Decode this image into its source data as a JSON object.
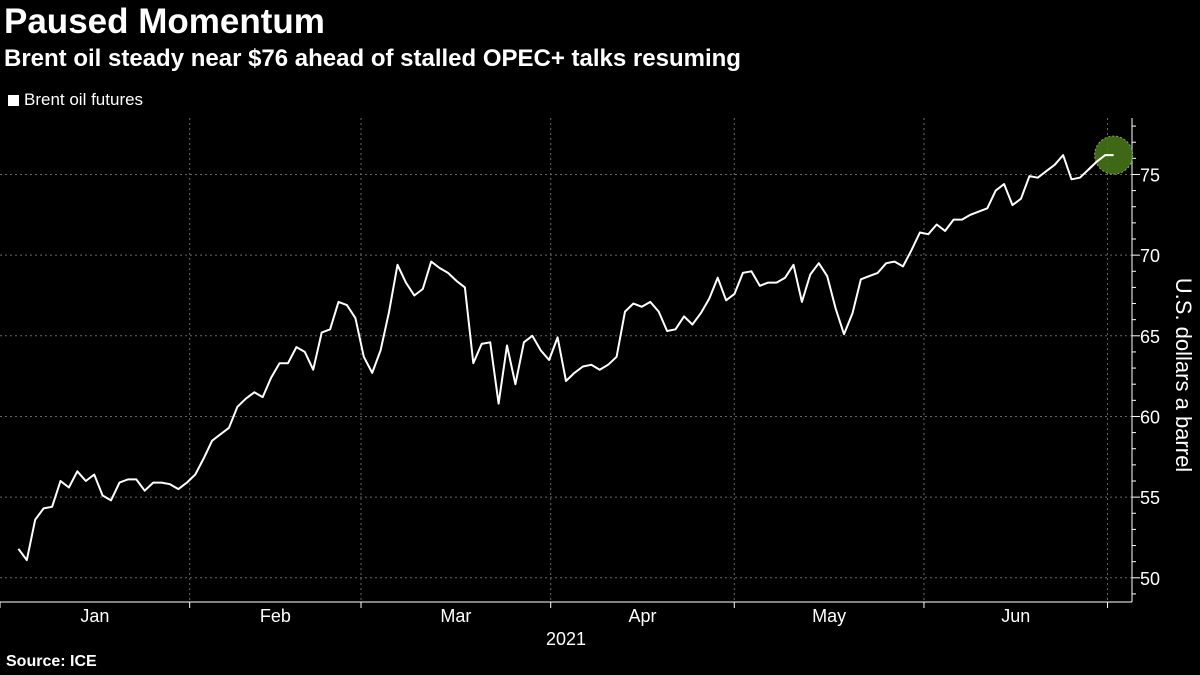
{
  "title": "Paused Momentum",
  "subtitle": "Brent oil steady near $76 ahead of stalled OPEC+ talks resuming",
  "source": "Source: ICE",
  "colors": {
    "background": "#000000",
    "line": "#ffffff",
    "grid": "#666666",
    "highlight": "#4a7a1a"
  },
  "chart_data": {
    "type": "line",
    "title": "Paused Momentum",
    "subtitle": "Brent oil steady near $76 ahead of stalled OPEC+ talks resuming",
    "xlabel": "2021",
    "ylabel": "U.S. dollars a barrel",
    "ylim": [
      48.5,
      78.5
    ],
    "yticks": [
      50,
      55,
      60,
      65,
      70,
      75
    ],
    "ytick_labels": [
      "50",
      "55",
      "60",
      "65",
      "70",
      "75"
    ],
    "y_axis_side": "right",
    "grid": true,
    "legend_placement": "top-left",
    "x_months": [
      "Jan",
      "Feb",
      "Mar",
      "Apr",
      "May",
      "Jun"
    ],
    "x_year_label": "2021",
    "highlight_last_point": true,
    "series": [
      {
        "name": "Brent oil futures",
        "x_start": "2021-01-04",
        "x_end": "2021-07-02",
        "values": [
          51.8,
          51.1,
          53.6,
          54.3,
          54.4,
          56.0,
          55.6,
          56.6,
          56.0,
          56.4,
          55.1,
          54.8,
          55.9,
          56.1,
          56.1,
          55.4,
          55.9,
          55.9,
          55.8,
          55.5,
          55.9,
          56.4,
          57.4,
          58.5,
          58.9,
          59.3,
          60.6,
          61.1,
          61.5,
          61.2,
          62.4,
          63.3,
          63.3,
          64.3,
          64.0,
          62.9,
          65.2,
          65.4,
          67.1,
          66.9,
          66.1,
          63.7,
          62.7,
          64.1,
          66.5,
          69.4,
          68.3,
          67.5,
          67.9,
          69.6,
          69.2,
          68.9,
          68.4,
          68.0,
          63.3,
          64.5,
          64.6,
          60.8,
          64.4,
          62.0,
          64.6,
          65.0,
          64.1,
          63.5,
          64.9,
          62.2,
          62.7,
          63.1,
          63.2,
          62.9,
          63.2,
          63.7,
          66.5,
          67.0,
          66.8,
          67.1,
          66.5,
          65.3,
          65.4,
          66.2,
          65.7,
          66.4,
          67.3,
          68.6,
          67.2,
          67.6,
          68.9,
          69.0,
          68.1,
          68.3,
          68.3,
          68.6,
          69.4,
          67.1,
          68.8,
          69.5,
          68.7,
          66.7,
          65.1,
          66.4,
          68.5,
          68.7,
          68.9,
          69.5,
          69.6,
          69.3,
          70.3,
          71.4,
          71.3,
          71.9,
          71.5,
          72.2,
          72.2,
          72.5,
          72.7,
          72.9,
          74.0,
          74.4,
          73.1,
          73.5,
          74.9,
          74.8,
          75.2,
          75.6,
          76.2,
          74.7,
          74.8,
          75.3,
          75.8,
          76.2,
          76.2
        ]
      }
    ]
  }
}
